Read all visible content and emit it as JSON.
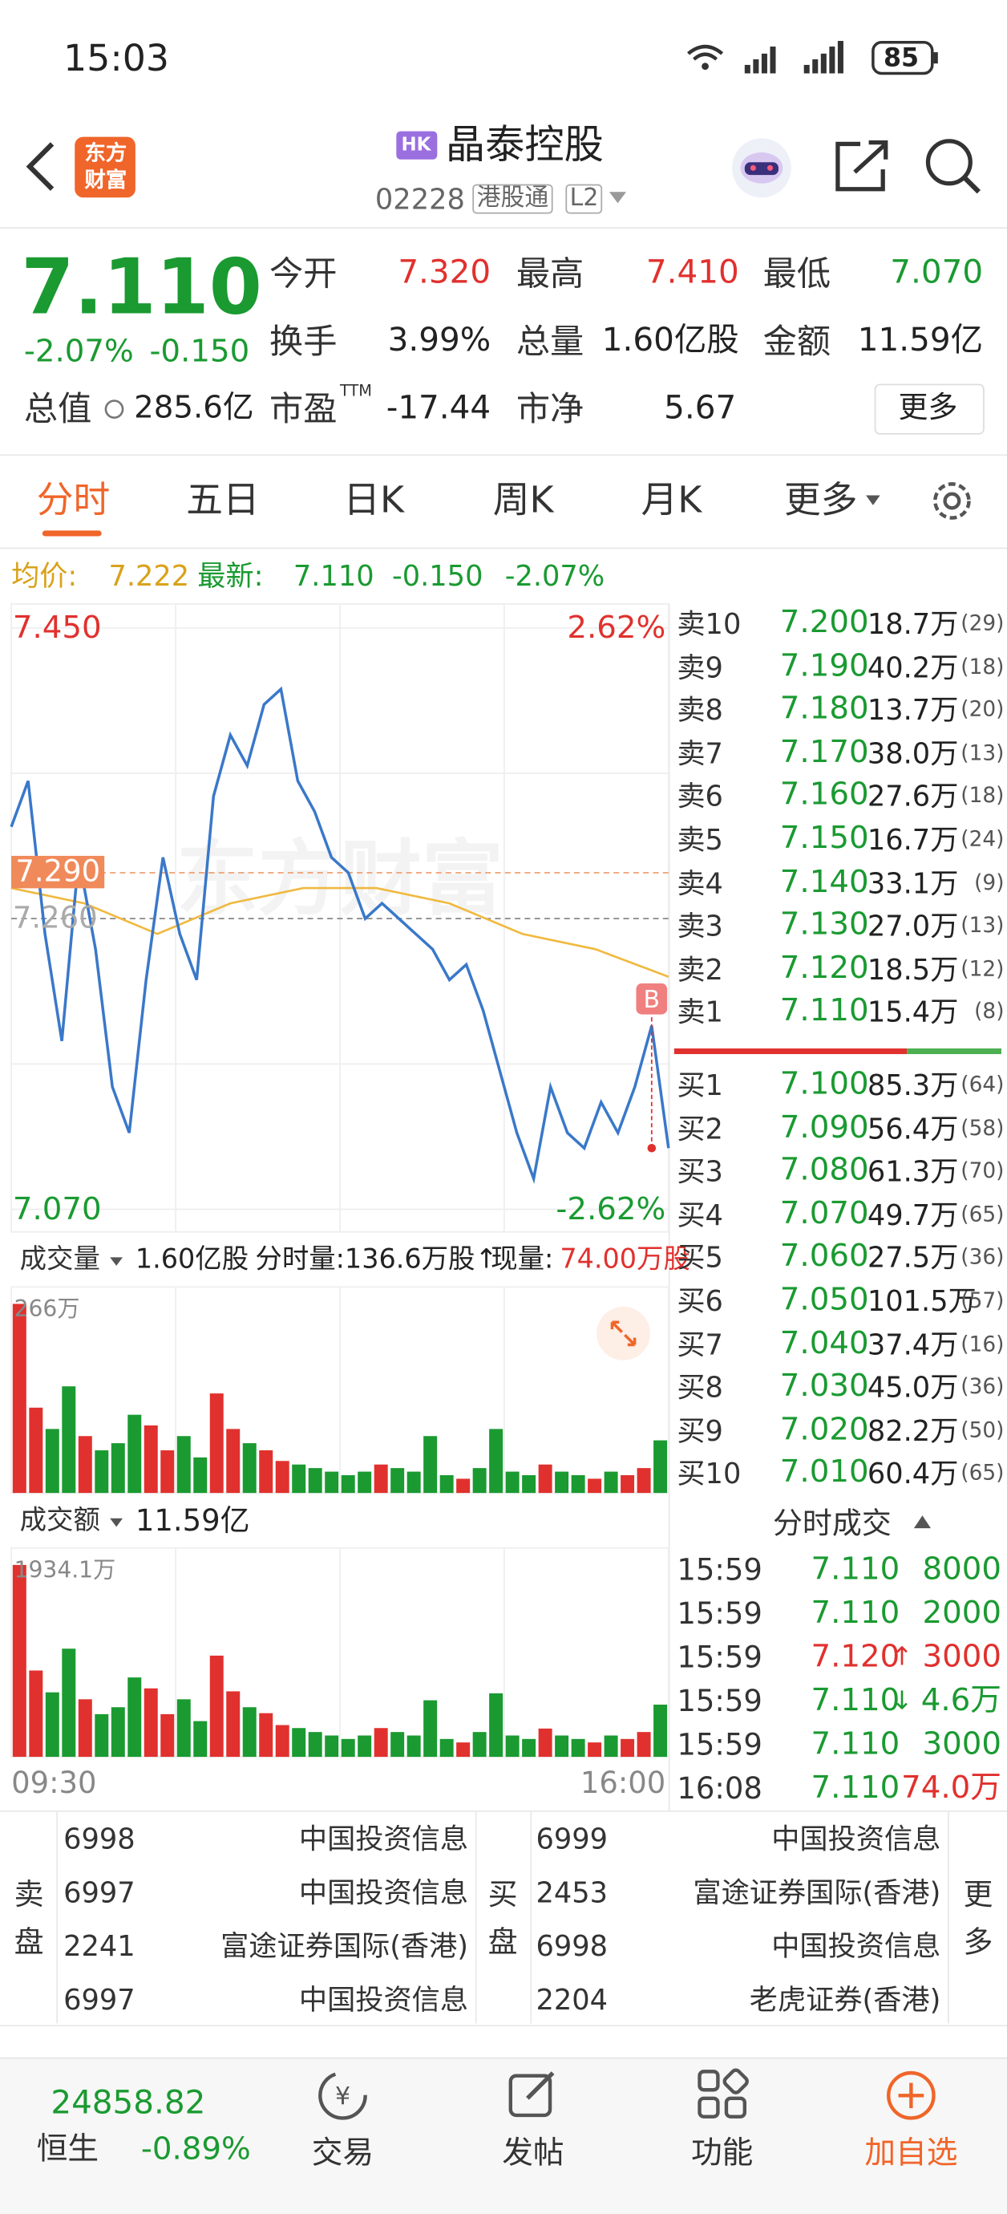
{
  "status_bar": {
    "time": "15:03",
    "battery": "85"
  },
  "header": {
    "logo": [
      "东方",
      "财富"
    ],
    "market": "HK",
    "name": "晶泰控股",
    "code": "02228",
    "tags": [
      "港股通",
      "L2"
    ]
  },
  "quote": {
    "price": "7.110",
    "change_pct": "-2.07%",
    "change": "-0.150",
    "total_value_label": "总值",
    "total_value": "285.6亿",
    "stats": [
      {
        "label": "今开",
        "value": "7.320"
      },
      {
        "label": "最高",
        "value": "7.410"
      },
      {
        "label": "最低",
        "value": "7.070"
      },
      {
        "label": "换手",
        "value": "3.99%"
      },
      {
        "label": "总量",
        "value": "1.60亿股"
      },
      {
        "label": "金额",
        "value": "11.59亿"
      },
      {
        "label": "市盈",
        "sup": "TTM",
        "value": "-17.44"
      },
      {
        "label": "市净",
        "value": "5.67"
      }
    ],
    "more": "更多"
  },
  "tabs": [
    "分时",
    "五日",
    "日K",
    "周K",
    "月K",
    "更多"
  ],
  "summary": {
    "avg_label": "均价:",
    "avg": "7.222",
    "last_label": "最新:",
    "last": "7.110",
    "change": "-0.150",
    "pct": "-2.07%"
  },
  "intraday": {
    "watermark": "东方财富",
    "price_axis": [
      {
        "value": 7.45,
        "label": "7.450"
      },
      {
        "value": 7.07,
        "label": "7.070"
      }
    ],
    "pct_top": "2.62%",
    "pct_bottom": "-2.62%",
    "ref_lines": [
      {
        "value": 7.29,
        "label": "7.290"
      },
      {
        "value": 7.26,
        "label": "7.260"
      }
    ],
    "marker": "B",
    "marker_index": 38,
    "prices": [
      7.32,
      7.35,
      7.25,
      7.18,
      7.3,
      7.24,
      7.15,
      7.12,
      7.22,
      7.3,
      7.25,
      7.22,
      7.34,
      7.38,
      7.36,
      7.4,
      7.41,
      7.35,
      7.33,
      7.3,
      7.29,
      7.26,
      7.27,
      7.26,
      7.25,
      7.24,
      7.22,
      7.23,
      7.2,
      7.16,
      7.12,
      7.09,
      7.15,
      7.12,
      7.11,
      7.14,
      7.12,
      7.15,
      7.19,
      7.11
    ],
    "avg_prices": [
      7.28,
      7.27,
      7.25,
      7.27,
      7.28,
      7.28,
      7.27,
      7.25,
      7.24,
      7.222
    ]
  },
  "volume": {
    "label": "成交量",
    "total": "1.60亿股",
    "per_min": "分时量:136.6万股↑",
    "current_label": "现量:",
    "current": "74.00万股",
    "max": {
      "value": 266,
      "label": "266万"
    },
    "bars": [
      266,
      120,
      90,
      150,
      80,
      60,
      70,
      110,
      95,
      60,
      80,
      50,
      140,
      90,
      70,
      60,
      45,
      40,
      35,
      30,
      25,
      30,
      40,
      35,
      30,
      80,
      25,
      20,
      35,
      90,
      30,
      25,
      40,
      30,
      25,
      20,
      30,
      25,
      35,
      74
    ]
  },
  "amount": {
    "label": "成交额",
    "total": "11.59亿",
    "max": {
      "value": 1934.1,
      "label": "1934.1万"
    },
    "bars": [
      1934.1,
      870,
      650,
      1090,
      580,
      430,
      500,
      800,
      690,
      430,
      580,
      360,
      1020,
      660,
      500,
      440,
      320,
      290,
      250,
      215,
      180,
      215,
      290,
      250,
      215,
      570,
      180,
      145,
      250,
      640,
      215,
      180,
      285,
      215,
      180,
      145,
      215,
      180,
      250,
      526
    ]
  },
  "time_axis": [
    "09:30",
    "16:00"
  ],
  "order_book": {
    "asks": [
      {
        "label": "卖10",
        "price": "7.200",
        "vol": "18.7万",
        "count": "(29)"
      },
      {
        "label": "卖9",
        "price": "7.190",
        "vol": "40.2万",
        "count": "(18)"
      },
      {
        "label": "卖8",
        "price": "7.180",
        "vol": "13.7万",
        "count": "(20)"
      },
      {
        "label": "卖7",
        "price": "7.170",
        "vol": "38.0万",
        "count": "(13)"
      },
      {
        "label": "卖6",
        "price": "7.160",
        "vol": "27.6万",
        "count": "(18)"
      },
      {
        "label": "卖5",
        "price": "7.150",
        "vol": "16.7万",
        "count": "(24)"
      },
      {
        "label": "卖4",
        "price": "7.140",
        "vol": "33.1万",
        "count": "(9)"
      },
      {
        "label": "卖3",
        "price": "7.130",
        "vol": "27.0万",
        "count": "(13)"
      },
      {
        "label": "卖2",
        "price": "7.120",
        "vol": "18.5万",
        "count": "(12)"
      },
      {
        "label": "卖1",
        "price": "7.110",
        "vol": "15.4万",
        "count": "(8)"
      }
    ],
    "bids": [
      {
        "label": "买1",
        "price": "7.100",
        "vol": "85.3万",
        "count": "(64)"
      },
      {
        "label": "买2",
        "price": "7.090",
        "vol": "56.4万",
        "count": "(58)"
      },
      {
        "label": "买3",
        "price": "7.080",
        "vol": "61.3万",
        "count": "(70)"
      },
      {
        "label": "买4",
        "price": "7.070",
        "vol": "49.7万",
        "count": "(65)"
      },
      {
        "label": "买5",
        "price": "7.060",
        "vol": "27.5万",
        "count": "(36)"
      },
      {
        "label": "买6",
        "price": "7.050",
        "vol": "101.5万",
        "count": "(57)"
      },
      {
        "label": "买7",
        "price": "7.040",
        "vol": "37.4万",
        "count": "(16)"
      },
      {
        "label": "买8",
        "price": "7.030",
        "vol": "45.0万",
        "count": "(36)"
      },
      {
        "label": "买9",
        "price": "7.020",
        "vol": "82.2万",
        "count": "(50)"
      },
      {
        "label": "买10",
        "price": "7.010",
        "vol": "60.4万",
        "count": "(65)"
      }
    ]
  },
  "trades": {
    "title": "分时成交",
    "rows": [
      {
        "time": "15:59",
        "price": "7.110",
        "vol": "8000",
        "color": "#1a9a31"
      },
      {
        "time": "15:59",
        "price": "7.110",
        "vol": "2000",
        "color": "#1a9a31"
      },
      {
        "time": "15:59",
        "price": "7.120",
        "dir": "↑",
        "vol": "3000",
        "color": "#e0312e"
      },
      {
        "time": "15:59",
        "price": "7.110",
        "dir": "↓",
        "vol": "4.6万",
        "color": "#1a9a31"
      },
      {
        "time": "15:59",
        "price": "7.110",
        "vol": "3000",
        "color": "#1a9a31"
      },
      {
        "time": "16:08",
        "price": "7.110",
        "vol": "74.0万",
        "color": "#e0312e"
      }
    ]
  },
  "brokers": {
    "sell_label": "卖盘",
    "buy_label": "买盘",
    "more": "更多",
    "sell": [
      {
        "id": "6998",
        "name": "中国投资信息"
      },
      {
        "id": "6997",
        "name": "中国投资信息"
      },
      {
        "id": "2241",
        "name": "富途证券国际(香港)"
      },
      {
        "id": "6997",
        "name": "中国投资信息"
      }
    ],
    "buy": [
      {
        "id": "6999",
        "name": "中国投资信息"
      },
      {
        "id": "2453",
        "name": "富途证券国际(香港)"
      },
      {
        "id": "6998",
        "name": "中国投资信息"
      },
      {
        "id": "2204",
        "name": "老虎证券(香港)"
      }
    ]
  },
  "bottom_nav": {
    "index_value": "24858.82",
    "index_name": "恒生",
    "index_change": "-0.89%",
    "items": [
      "交易",
      "发帖",
      "功能",
      "加自选"
    ]
  }
}
